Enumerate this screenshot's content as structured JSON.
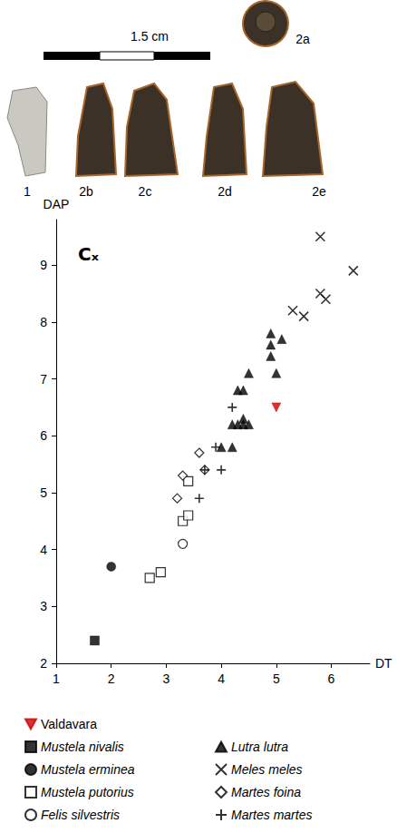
{
  "chart_data": {
    "type": "scatter",
    "title": "Cₓ",
    "x_label": "DT",
    "y_label": "DAP",
    "xlim": [
      1,
      6.7
    ],
    "xticks": [
      1,
      2,
      3,
      4,
      5,
      6
    ],
    "ylim": [
      2,
      9.8
    ],
    "yticks": [
      2,
      3,
      4,
      5,
      6,
      7,
      8,
      9
    ],
    "grid": false,
    "legend": "bottom",
    "series": [
      {
        "name": "Valdavara",
        "color": "#cc0000",
        "marker": "triangle-down",
        "x": [
          5.0
        ],
        "values": [
          6.5
        ]
      },
      {
        "name": "Mustela nivalis",
        "color": "#000000",
        "marker": "square",
        "x": [
          1.7
        ],
        "values": [
          2.4
        ]
      },
      {
        "name": "Mustela erminea",
        "color": "#000000",
        "marker": "circle",
        "x": [
          2.0
        ],
        "values": [
          3.7
        ]
      },
      {
        "name": "Mustela putorius",
        "color": "#000000",
        "marker": "square-open",
        "x": [
          2.7,
          2.9,
          3.3,
          3.4,
          3.4
        ],
        "values": [
          3.5,
          3.6,
          4.5,
          4.6,
          5.2
        ]
      },
      {
        "name": "Felis silvestris",
        "color": "#000000",
        "marker": "circle-open",
        "x": [
          3.3
        ],
        "values": [
          4.1
        ]
      },
      {
        "name": "Lutra lutra",
        "color": "#000000",
        "marker": "triangle",
        "x": [
          4.0,
          4.2,
          4.2,
          4.3,
          4.3,
          4.4,
          4.4,
          4.4,
          4.5,
          4.5,
          4.9,
          4.9,
          4.9,
          5.0,
          5.1
        ],
        "values": [
          5.8,
          6.2,
          5.8,
          6.2,
          6.8,
          6.8,
          6.3,
          6.2,
          6.2,
          7.1,
          7.4,
          7.6,
          7.8,
          7.1,
          7.7
        ]
      },
      {
        "name": "Meles meles",
        "color": "#000000",
        "marker": "x",
        "x": [
          5.3,
          5.5,
          5.8,
          5.8,
          5.9,
          6.4
        ],
        "values": [
          8.2,
          8.1,
          9.5,
          8.5,
          8.4,
          8.9
        ]
      },
      {
        "name": "Martes foina",
        "color": "#000000",
        "marker": "diamond-open",
        "x": [
          3.2,
          3.3,
          3.6,
          3.7
        ],
        "values": [
          4.9,
          5.3,
          5.7,
          5.4
        ]
      },
      {
        "name": "Martes martes",
        "color": "#000000",
        "marker": "plus",
        "x": [
          3.6,
          3.9,
          4.0,
          4.2,
          3.7
        ],
        "values": [
          4.9,
          5.8,
          5.4,
          6.5,
          5.4
        ]
      }
    ]
  },
  "figure": {
    "scale_bar": "1.5 cm",
    "specimens": [
      "1",
      "2a",
      "2b",
      "2c",
      "2d",
      "2e"
    ]
  }
}
